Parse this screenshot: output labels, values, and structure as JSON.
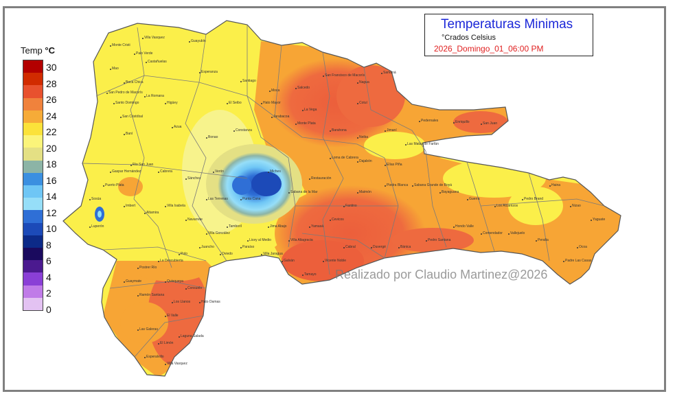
{
  "legend": {
    "title_prefix": "Temp",
    "title_unit": "°C",
    "ticks": [
      "30",
      "28",
      "26",
      "24",
      "22",
      "20",
      "18",
      "16",
      "14",
      "12",
      "10",
      "8",
      "6",
      "4",
      "2",
      "0"
    ],
    "colors": [
      "#b30000",
      "#d12b00",
      "#e8512e",
      "#f0823c",
      "#f6ab38",
      "#fbe23a",
      "#fbf47a",
      "#e4e084",
      "#8cb4a6",
      "#3b8fe0",
      "#6fc6f5",
      "#96def8",
      "#2f6fd6",
      "#1c4ab8",
      "#0c2a88",
      "#1a0a5e",
      "#4b1a8f",
      "#8a3fd6",
      "#c07be8",
      "#e3c2f2"
    ]
  },
  "title": {
    "main": "Temperaturas Minimas",
    "units": "°Crados Celsius",
    "date": "2026_Domingo_01_06:00 PM"
  },
  "watermark": "Realizado por Claudio Martinez@2026",
  "colors": {
    "yellow": "#fbef4a",
    "pale_yellow": "#f7f38c",
    "orange": "#f7a535",
    "red_orange": "#ee6a3f",
    "deep_blue": "#2b7fe0",
    "light_blue": "#8fe0f7",
    "teal": "#8ab7a6",
    "boundary": "#7a7a7a",
    "frame": "#808080",
    "title_blue": "#1b27d8",
    "date_red": "#e01f1f"
  },
  "places": [
    "Villa Vasquez",
    "Monte Cristi",
    "Palo Verde",
    "Castañuelas",
    "Guayubín",
    "Mao",
    "Esperanza",
    "Santiago",
    "Moca",
    "Salcedo",
    "San Francisco de Macorís",
    "Nagua",
    "Samaná",
    "Cotuí",
    "La Vega",
    "Jarabacoa",
    "Constanza",
    "Bonao",
    "Azua",
    "Baní",
    "San Cristóbal",
    "Santo Domingo",
    "Boca Chica",
    "San Pedro de Macorís",
    "La Romana",
    "Higüey",
    "El Seibo",
    "Hato Mayor",
    "Monte Plata",
    "Barahona",
    "Neiba",
    "Jimaní",
    "Pedernales",
    "Enriquillo",
    "San Juan",
    "Las Matas de Farfán",
    "Elías Piña",
    "Dajabón",
    "Loma de Cabrera",
    "Restauración",
    "Sabana de la Mar",
    "Miches",
    "Punta Cana",
    "Verón",
    "Las Terrenas",
    "Sánchez",
    "Cabrera",
    "Río San Juan",
    "Gaspar Hernández",
    "Puerto Plata",
    "Sosúa",
    "Luperón",
    "Imbert",
    "Altamira",
    "Villa Isabela",
    "Navarrete",
    "Villa González",
    "Tamboril",
    "Licey al Medio",
    "Jima Abajo",
    "Villa Altagracia",
    "Yamasá",
    "Cevicos",
    "Fantino",
    "Maimón",
    "Piedra Blanca",
    "Sabana Grande de Boyá",
    "Bayaguana",
    "Guerra",
    "Los Alcarrizos",
    "Pedro Brand",
    "Haina",
    "Nizao",
    "Yaguate",
    "Ocoa",
    "Padre Las Casas",
    "Peralta",
    "Vallejuelo",
    "Comendador",
    "Hondo Valle",
    "Pedro Santana",
    "Bánica",
    "Duvergé",
    "Cabral",
    "Vicente Noble",
    "Tamayo",
    "Galván",
    "Villa Jaragua",
    "Paraíso",
    "Oviedo",
    "Juancho",
    "Polo",
    "La Descubierta",
    "Postrer Río",
    "Guaymate",
    "Ramón Santana",
    "Quisqueya",
    "Consuelo",
    "Los Llanos",
    "Hato Damas",
    "El Valle",
    "Las Galeras",
    "El Limón",
    "Laguna Salada",
    "Esperalvillo"
  ]
}
